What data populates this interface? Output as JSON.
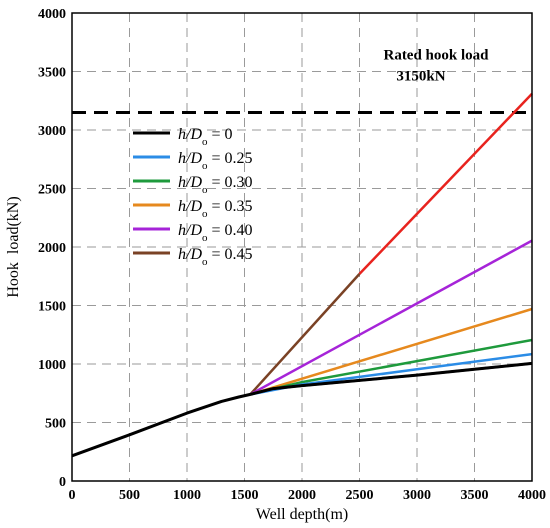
{
  "chart_data": {
    "type": "line",
    "xlabel": "Well depth(m)",
    "ylabel": "Hook  load(kN)",
    "xlim": [
      0,
      4000
    ],
    "ylim": [
      0,
      4000
    ],
    "x_ticks": [
      0,
      500,
      1000,
      1500,
      2000,
      2500,
      3000,
      3500,
      4000
    ],
    "y_ticks": [
      0,
      500,
      1000,
      1500,
      2000,
      2500,
      3000,
      3500,
      4000
    ],
    "grid": true,
    "legend_position": "left-center",
    "reference_line": {
      "y": 3150,
      "style": "dashed",
      "color": "#000000",
      "label_line1": "Rated hook load",
      "label_line2": "3150kN"
    },
    "common_segment": {
      "x": [
        0,
        500,
        1000,
        1300,
        1450,
        1550
      ],
      "y": [
        215,
        395,
        580,
        680,
        718,
        740
      ]
    },
    "series": [
      {
        "name": "h/Do = 0",
        "legend_prefix": "h/D",
        "legend_sub": "o",
        "legend_suffix": " = 0",
        "color": "#000000",
        "x": [
          1550,
          1750,
          2000,
          2500,
          3000,
          3500,
          4000
        ],
        "y": [
          740,
          790,
          815,
          860,
          905,
          955,
          1005
        ]
      },
      {
        "name": "h/Do = 0.25",
        "legend_prefix": "h/D",
        "legend_sub": "o",
        "legend_suffix": " = 0.25",
        "color": "#2b8ce6",
        "x": [
          1550,
          2000,
          3000,
          4000
        ],
        "y": [
          740,
          825,
          955,
          1085
        ]
      },
      {
        "name": "h/Do = 0.30",
        "legend_prefix": "h/D",
        "legend_sub": "o",
        "legend_suffix": " = 0.30",
        "color": "#1e9a3c",
        "x": [
          1550,
          2000,
          3000,
          4000
        ],
        "y": [
          740,
          845,
          1025,
          1205
        ]
      },
      {
        "name": "h/Do = 0.35",
        "legend_prefix": "h/D",
        "legend_sub": "o",
        "legend_suffix": " = 0.35",
        "color": "#e6891e",
        "x": [
          1550,
          4000
        ],
        "y": [
          740,
          1470
        ]
      },
      {
        "name": "h/Do = 0.40",
        "legend_prefix": "h/D",
        "legend_sub": "o",
        "legend_suffix": " = 0.40",
        "color": "#a624d8",
        "x": [
          1550,
          4000
        ],
        "y": [
          740,
          2055
        ]
      },
      {
        "name": "h/Do = 0.45",
        "legend_prefix": "h/D",
        "legend_sub": "o",
        "legend_suffix": " = 0.45",
        "color": "#7a4225",
        "x": [
          1550,
          2500
        ],
        "y": [
          740,
          1770
        ]
      },
      {
        "name": "",
        "color": "#e8231e",
        "x": [
          2500,
          4000
        ],
        "y": [
          1770,
          3310
        ]
      }
    ]
  }
}
